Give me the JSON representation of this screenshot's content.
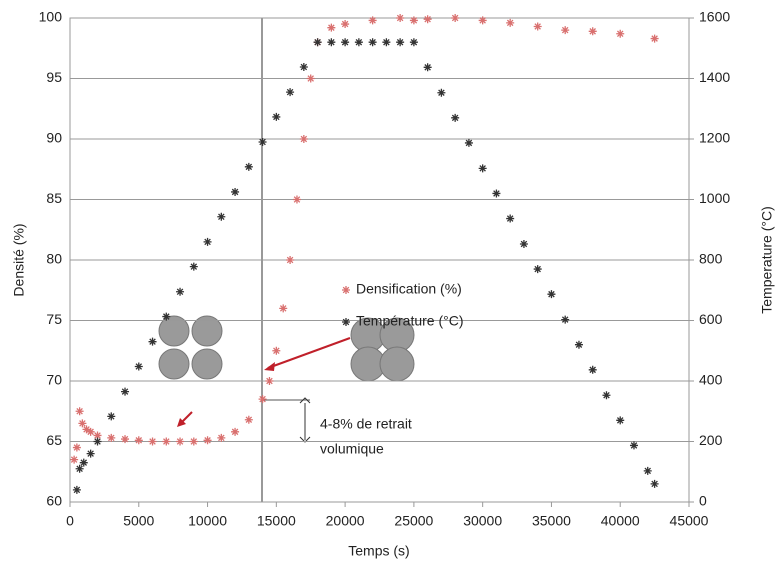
{
  "chart_data": {
    "type": "scatter",
    "xlabel": "Temps (s)",
    "ylabel": "Densité (%)",
    "y2label": "Temperature (°C)",
    "xlim": [
      0,
      45000
    ],
    "xticks": [
      0,
      5000,
      10000,
      15000,
      20000,
      25000,
      30000,
      35000,
      40000,
      45000
    ],
    "ylim": [
      60,
      100
    ],
    "yticks": [
      60,
      65,
      70,
      75,
      80,
      85,
      90,
      95,
      100
    ],
    "y2lim": [
      0,
      1600
    ],
    "y2ticks": [
      0,
      200,
      400,
      600,
      800,
      1000,
      1200,
      1400,
      1600
    ],
    "grid": true,
    "series": [
      {
        "name": "Densification (%)",
        "color": "#d9706f",
        "x": [
          300,
          500,
          700,
          900,
          1200,
          1500,
          2000,
          3000,
          4000,
          5000,
          6000,
          7000,
          8000,
          9000,
          10000,
          11000,
          12000,
          13000,
          14000,
          14500,
          15000,
          15500,
          16000,
          16500,
          17000,
          17500,
          18000,
          19000,
          20000,
          22000,
          24000,
          25000,
          26000,
          28000,
          30000,
          32000,
          34000,
          36000,
          38000,
          40000,
          42500
        ],
        "values": [
          63.5,
          64.5,
          67.5,
          66.5,
          66,
          65.8,
          65.5,
          65.3,
          65.2,
          65.1,
          65,
          65,
          65,
          65,
          65.1,
          65.3,
          65.8,
          66.8,
          68.5,
          70,
          72.5,
          76,
          80,
          85,
          90,
          95,
          98,
          99.2,
          99.5,
          99.8,
          100,
          99.8,
          99.9,
          100,
          99.8,
          99.6,
          99.3,
          99,
          98.9,
          98.7,
          98.3
        ]
      },
      {
        "name": "Température (°C)",
        "color": "#333333",
        "axis": "y2",
        "x": [
          500,
          700,
          1000,
          1500,
          2000,
          3000,
          4000,
          5000,
          6000,
          7000,
          8000,
          9000,
          10000,
          11000,
          12000,
          13000,
          14000,
          15000,
          16000,
          17000,
          18000,
          19000,
          20000,
          21000,
          22000,
          23000,
          24000,
          25000,
          26000,
          27000,
          28000,
          29000,
          30000,
          31000,
          32000,
          33000,
          34000,
          35000,
          36000,
          37000,
          38000,
          39000,
          40000,
          41000,
          42000,
          42500
        ],
        "values": [
          40,
          110,
          130,
          160,
          200,
          283,
          365,
          448,
          530,
          613,
          695,
          778,
          860,
          943,
          1025,
          1108,
          1190,
          1273,
          1355,
          1438,
          1520,
          1520,
          1520,
          1520,
          1520,
          1520,
          1520,
          1520,
          1437,
          1353,
          1270,
          1187,
          1103,
          1020,
          937,
          853,
          770,
          687,
          603,
          520,
          437,
          353,
          270,
          187,
          103,
          60
        ]
      }
    ],
    "annotation": [
      "4-8% de retrait",
      "volumique"
    ]
  }
}
